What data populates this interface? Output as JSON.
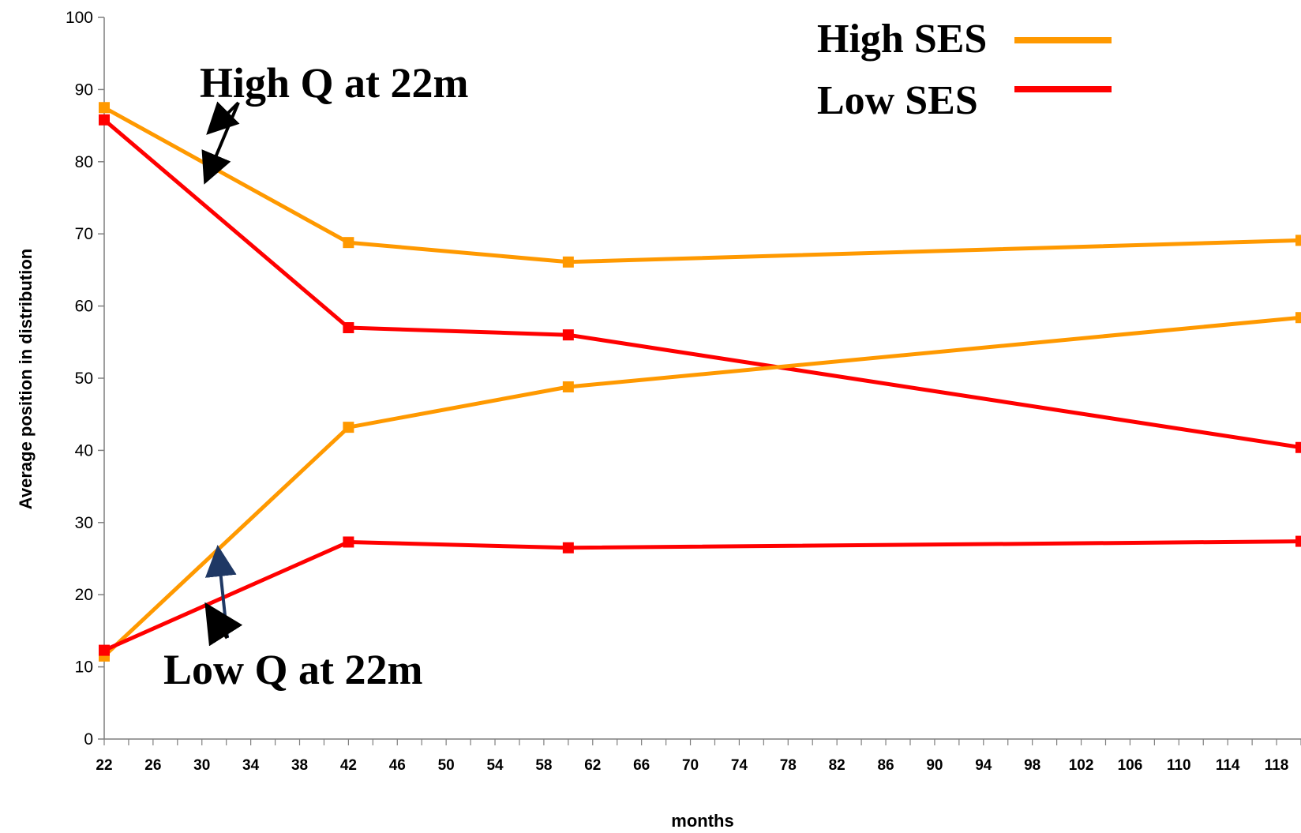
{
  "chart_data": {
    "type": "line",
    "xlabel": "months",
    "ylabel": "Average position in distribution",
    "ylim": [
      0,
      100
    ],
    "xlim": [
      22,
      120
    ],
    "y_ticks": [
      0,
      10,
      20,
      30,
      40,
      50,
      60,
      70,
      80,
      90,
      100
    ],
    "x_ticks": [
      22,
      26,
      30,
      34,
      38,
      42,
      46,
      50,
      54,
      58,
      62,
      66,
      70,
      74,
      78,
      82,
      86,
      90,
      94,
      98,
      102,
      106,
      110,
      114,
      118
    ],
    "legend_position": "top-right",
    "series": [
      {
        "name": "High SES",
        "group": "High Q at 22m",
        "color": "#FF9900",
        "x": [
          22,
          42,
          60,
          120
        ],
        "y": [
          87.5,
          68.8,
          66.1,
          69.1
        ]
      },
      {
        "name": "Low SES",
        "group": "High Q at 22m",
        "color": "#FF0000",
        "x": [
          22,
          42,
          60,
          120
        ],
        "y": [
          85.8,
          57.0,
          56.0,
          40.4
        ]
      },
      {
        "name": "High SES",
        "group": "Low Q at 22m",
        "color": "#FF9900",
        "x": [
          22,
          42,
          60,
          120
        ],
        "y": [
          11.5,
          43.2,
          48.8,
          58.4
        ]
      },
      {
        "name": "Low SES",
        "group": "Low Q at 22m",
        "color": "#FF0000",
        "x": [
          22,
          42,
          60,
          120
        ],
        "y": [
          12.3,
          27.3,
          26.5,
          27.4
        ]
      }
    ],
    "legend": [
      {
        "label": "High SES",
        "color": "#FF9900"
      },
      {
        "label": "Low SES",
        "color": "#FF0000"
      }
    ],
    "annotations": [
      {
        "text": "High Q at 22m",
        "arrow_color": "#000000"
      },
      {
        "text": "Low Q at 22m",
        "arrow_color": "#000000",
        "second_arrow_color": "#1F3864"
      }
    ]
  }
}
